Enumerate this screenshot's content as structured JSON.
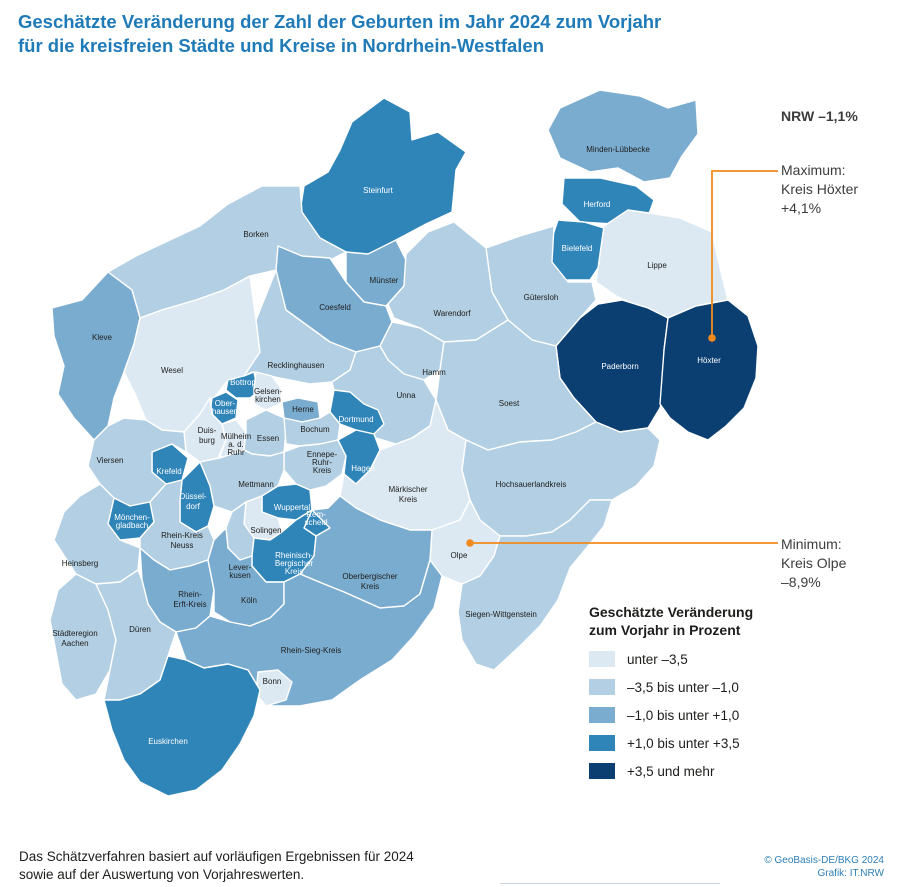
{
  "title": {
    "line1": "Geschätzte Veränderung der Zahl der Geburten im Jahr 2024 zum Vorjahr",
    "line2": "für die kreisfreien Städte und Kreise in Nordrhein-Westfalen"
  },
  "nrw_total": "NRW –1,1%",
  "callouts": {
    "maximum": {
      "line1": "Maximum:",
      "line2": "Kreis Höxter",
      "line3": "+4,1%"
    },
    "minimum": {
      "line1": "Minimum:",
      "line2": "Kreis Olpe",
      "line3": "–8,9%"
    }
  },
  "legend": {
    "title_line1": "Geschätzte Veränderung",
    "title_line2": "zum Vorjahr in Prozent",
    "classes": [
      {
        "label": "unter –3,5",
        "color": "#dde9f2"
      },
      {
        "label": "–3,5 bis unter –1,0",
        "color": "#b2cfe3"
      },
      {
        "label": "–1,0 bis unter +1,0",
        "color": "#7aacd0"
      },
      {
        "label": "+1,0 bis unter +3,5",
        "color": "#2f84b8"
      },
      {
        "label": "+3,5 und mehr",
        "color": "#0b3f72"
      }
    ]
  },
  "regions": [
    {
      "name": "Minden-Lübbecke",
      "label": "Minden-Lübbecke",
      "class": 2
    },
    {
      "name": "Steinfurt",
      "label": "Steinfurt",
      "class": 3
    },
    {
      "name": "Herford",
      "label": "Herford",
      "class": 3
    },
    {
      "name": "Bielefeld",
      "label": "Bielefeld",
      "class": 3
    },
    {
      "name": "Borken",
      "label": "Borken",
      "class": 1
    },
    {
      "name": "Lippe",
      "label": "Lippe",
      "class": 0
    },
    {
      "name": "Münster",
      "label": "Münster",
      "class": 2
    },
    {
      "name": "Gütersloh",
      "label": "Gütersloh",
      "class": 1
    },
    {
      "name": "Coesfeld",
      "label": "Coesfeld",
      "class": 2
    },
    {
      "name": "Warendorf",
      "label": "Warendorf",
      "class": 1
    },
    {
      "name": "Kleve",
      "label": "Kleve",
      "class": 2
    },
    {
      "name": "Paderborn",
      "label": "Paderborn",
      "class": 4
    },
    {
      "name": "Höxter",
      "label": "Höxter",
      "class": 4
    },
    {
      "name": "Wesel",
      "label": "Wesel",
      "class": 0
    },
    {
      "name": "Recklinghausen",
      "label": "Recklinghausen",
      "class": 1
    },
    {
      "name": "Hamm",
      "label": "Hamm",
      "class": 1
    },
    {
      "name": "Bottrop",
      "label": "Bottrop",
      "class": 3
    },
    {
      "name": "Gelsenkirchen",
      "label": "Gelsen-kirchen",
      "class": 0
    },
    {
      "name": "Oberhausen",
      "label": "Ober-hausen",
      "class": 3
    },
    {
      "name": "Herne",
      "label": "Herne",
      "class": 2
    },
    {
      "name": "Unna",
      "label": "Unna",
      "class": 1
    },
    {
      "name": "Dortmund",
      "label": "Dortmund",
      "class": 3
    },
    {
      "name": "Soest",
      "label": "Soest",
      "class": 1
    },
    {
      "name": "Duisburg",
      "label": "Duis-burg",
      "class": 0
    },
    {
      "name": "Mülheim a.d. Ruhr",
      "label": "Mülheim a. d. Ruhr",
      "class": 0
    },
    {
      "name": "Essen",
      "label": "Essen",
      "class": 1
    },
    {
      "name": "Bochum",
      "label": "Bochum",
      "class": 1
    },
    {
      "name": "Ennepe-Ruhr-Kreis",
      "label": "Ennepe-Ruhr-Kreis",
      "class": 1
    },
    {
      "name": "Hagen",
      "label": "Hagen",
      "class": 3
    },
    {
      "name": "Krefeld",
      "label": "Krefeld",
      "class": 3
    },
    {
      "name": "Viersen",
      "label": "Viersen",
      "class": 1
    },
    {
      "name": "Mettmann",
      "label": "Mettmann",
      "class": 1
    },
    {
      "name": "Märkischer Kreis",
      "label": "Märkischer Kreis",
      "class": 0
    },
    {
      "name": "Hochsauerlandkreis",
      "label": "Hochsauerlandkreis",
      "class": 1
    },
    {
      "name": "Düsseldorf",
      "label": "Düssel-dorf",
      "class": 3
    },
    {
      "name": "Wuppertal",
      "label": "Wuppertal",
      "class": 3
    },
    {
      "name": "Remscheid",
      "label": "Rem-scheid",
      "class": 3
    },
    {
      "name": "Mönchengladbach",
      "label": "Mönchen-gladbach",
      "class": 3
    },
    {
      "name": "Rhein-Kreis Neuss",
      "label": "Rhein-Kreis Neuss",
      "class": 1
    },
    {
      "name": "Solingen",
      "label": "Solingen",
      "class": 0
    },
    {
      "name": "Olpe",
      "label": "Olpe",
      "class": 0
    },
    {
      "name": "Heinsberg",
      "label": "Heinsberg",
      "class": 1
    },
    {
      "name": "Leverkusen",
      "label": "Leverkusen",
      "class": 1
    },
    {
      "name": "Rheinisch-Bergischer Kreis",
      "label": "Rheinisch-Bergischer Kreis",
      "class": 3
    },
    {
      "name": "Oberbergischer Kreis",
      "label": "Oberbergischer Kreis",
      "class": 2
    },
    {
      "name": "Rhein-Erft-Kreis",
      "label": "Rhein-Erft-Kreis",
      "class": 2
    },
    {
      "name": "Köln",
      "label": "Köln",
      "class": 2
    },
    {
      "name": "Siegen-Wittgenstein",
      "label": "Siegen-Wittgenstein",
      "class": 1
    },
    {
      "name": "Städteregion Aachen",
      "label": "Städteregion Aachen",
      "class": 1
    },
    {
      "name": "Düren",
      "label": "Düren",
      "class": 1
    },
    {
      "name": "Rhein-Sieg-Kreis",
      "label": "Rhein-Sieg-Kreis",
      "class": 2
    },
    {
      "name": "Bonn",
      "label": "Bonn",
      "class": 0
    },
    {
      "name": "Euskirchen",
      "label": "Euskirchen",
      "class": 3
    }
  ],
  "footnote": {
    "line1": "Das Schätzverfahren basiert auf vorläufigen Ergebnissen für 2024",
    "line2": "sowie auf der Auswertung von Vorjahreswerten."
  },
  "credit": {
    "line1": "© GeoBasis-DE/BKG 2024",
    "line2": "Grafik: IT.NRW"
  }
}
